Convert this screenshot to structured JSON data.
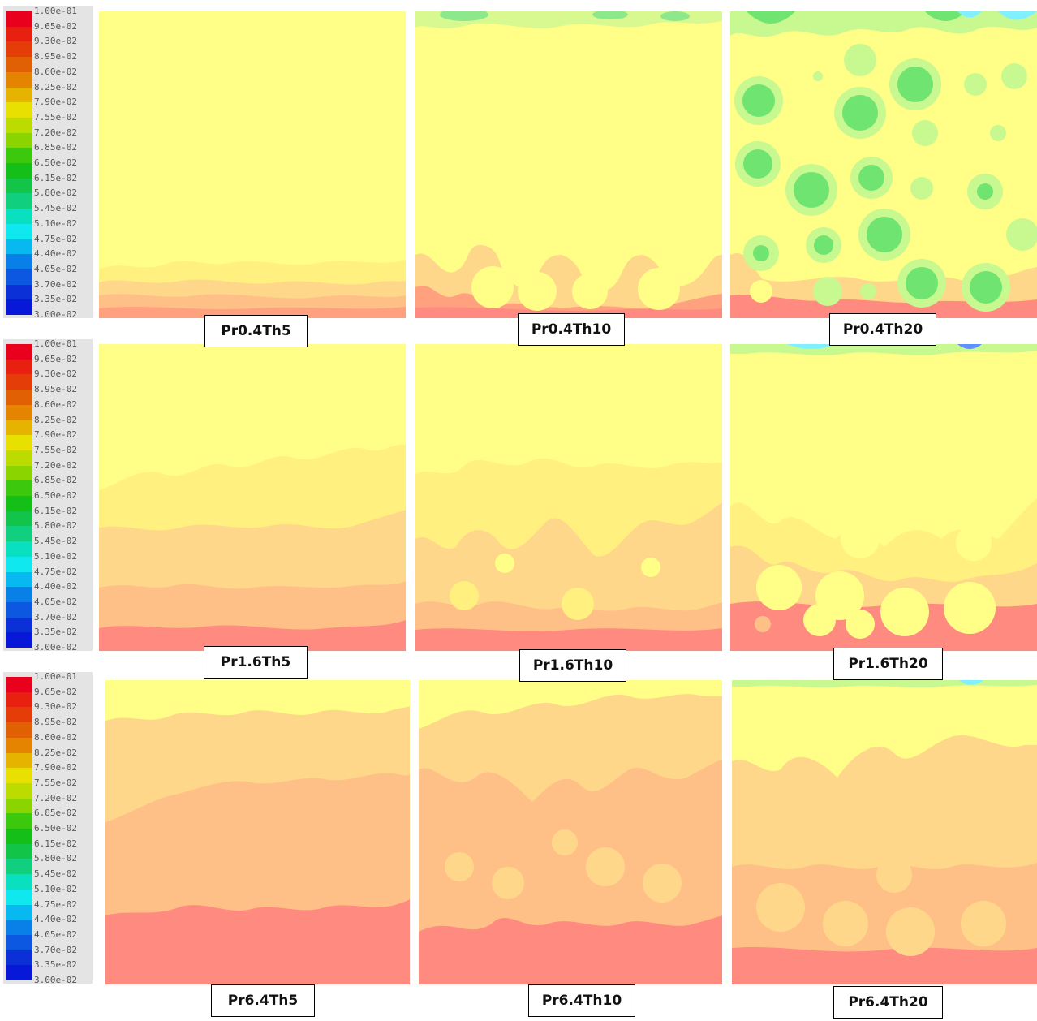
{
  "colorbar": {
    "labels": [
      "1.00e-01",
      "9.65e-02",
      "9.30e-02",
      "8.95e-02",
      "8.60e-02",
      "8.25e-02",
      "7.90e-02",
      "7.55e-02",
      "7.20e-02",
      "6.85e-02",
      "6.50e-02",
      "6.15e-02",
      "5.80e-02",
      "5.45e-02",
      "5.10e-02",
      "4.75e-02",
      "4.40e-02",
      "4.05e-02",
      "3.70e-02",
      "3.35e-02",
      "3.00e-02"
    ],
    "colors": [
      "#e8001c",
      "#e8200f",
      "#e43d08",
      "#e26004",
      "#e48400",
      "#e6b400",
      "#e8e000",
      "#bcdc00",
      "#8cd400",
      "#3cc80c",
      "#14c018",
      "#12c448",
      "#10d080",
      "#08e0c0",
      "#10e8f0",
      "#08b8f0",
      "#0880e8",
      "#0c58e0",
      "#0c30d8",
      "#0818d8"
    ]
  },
  "palette": {
    "lightest": "#ffff88",
    "light": "#fff080",
    "mid": "#ffd78a",
    "midlow": "#ffc088",
    "low": "#ffa07e",
    "lowest": "#ff8a80",
    "bubble_outer": "#c8f890",
    "bubble_inner": "#70e470",
    "bubble_core": "#40d060",
    "cyan": "#80f0ff",
    "blue": "#6090ff"
  },
  "panels": [
    {
      "row": 0,
      "col": 0,
      "caption": "Pr0.4Th5"
    },
    {
      "row": 0,
      "col": 1,
      "caption": "Pr0.4Th10"
    },
    {
      "row": 0,
      "col": 2,
      "caption": "Pr0.4Th20"
    },
    {
      "row": 1,
      "col": 0,
      "caption": "Pr1.6Th5"
    },
    {
      "row": 1,
      "col": 1,
      "caption": "Pr1.6Th10"
    },
    {
      "row": 1,
      "col": 2,
      "caption": "Pr1.6Th20"
    },
    {
      "row": 2,
      "col": 0,
      "caption": "Pr6.4Th5"
    },
    {
      "row": 2,
      "col": 1,
      "caption": "Pr6.4Th10"
    },
    {
      "row": 2,
      "col": 2,
      "caption": "Pr6.4Th20"
    }
  ]
}
